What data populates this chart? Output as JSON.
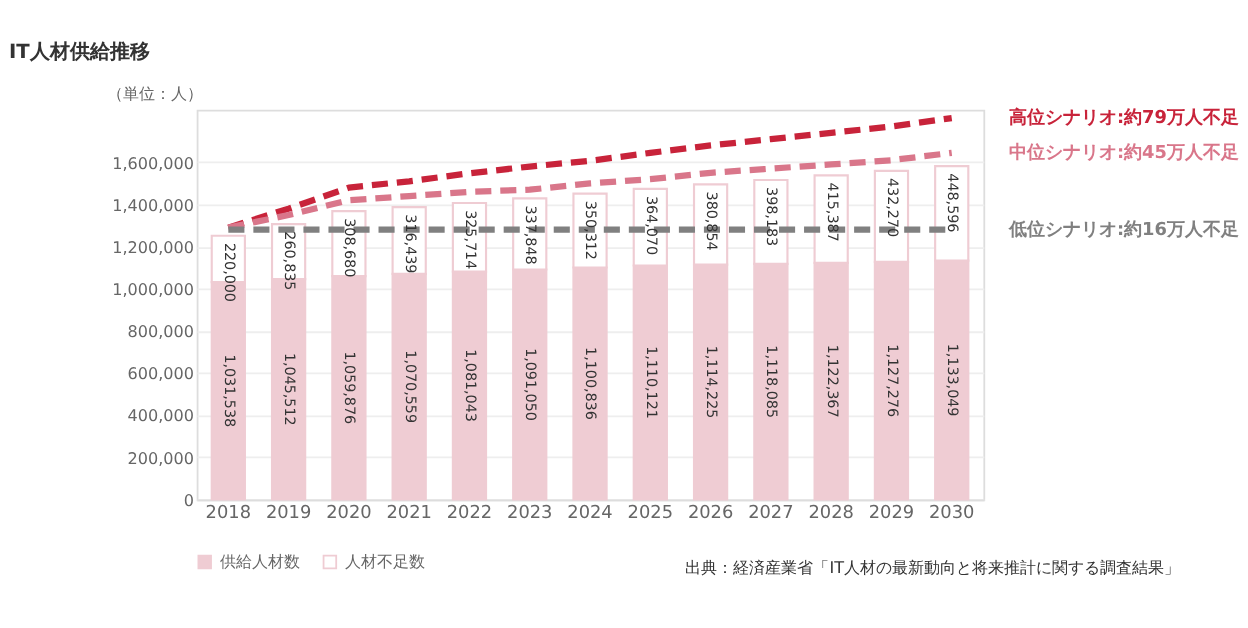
{
  "chart_data": {
    "type": "bar",
    "title": "IT人材供給推移",
    "ylabel": "（単位：人）",
    "categories": [
      "2018",
      "2019",
      "2020",
      "2021",
      "2022",
      "2023",
      "2024",
      "2025",
      "2026",
      "2027",
      "2028",
      "2029",
      "2030"
    ],
    "stacked": true,
    "ylim": [
      0,
      1850000
    ],
    "yticks": [
      {
        "value": 0,
        "label": "0"
      },
      {
        "value": 200000,
        "label": "200,000"
      },
      {
        "value": 400000,
        "label": "400,000"
      },
      {
        "value": 600000,
        "label": "600,000"
      },
      {
        "value": 800000,
        "label": "800,000"
      },
      {
        "value": 1000000,
        "label": "1,000,000"
      },
      {
        "value": 1200000,
        "label": "1,200,000"
      },
      {
        "value": 1400000,
        "label": "1,400,000"
      },
      {
        "value": 1600000,
        "label": "1,600,000"
      }
    ],
    "grid": "y",
    "legend": "bottom",
    "series": [
      {
        "name": "供給人材数",
        "color": "#efccd3",
        "values": [
          1031538,
          1045512,
          1059876,
          1070559,
          1081043,
          1091050,
          1100836,
          1110121,
          1114225,
          1118085,
          1122367,
          1127276,
          1133049
        ],
        "value_labels": [
          "1,031,538",
          "1,045,512",
          "1,059,876",
          "1,070,559",
          "1,081,043",
          "1,091,050",
          "1,100,836",
          "1,110,121",
          "1,114,225",
          "1,118,085",
          "1,122,367",
          "1,127,276",
          "1,133,049"
        ]
      },
      {
        "name": "人材不足数",
        "color": "#ffffff",
        "values": [
          220000,
          260835,
          308680,
          316439,
          325714,
          337848,
          350312,
          364070,
          380854,
          398183,
          415387,
          432270,
          448596
        ],
        "value_labels": [
          "220,000",
          "260,835",
          "308,680",
          "316,439",
          "325,714",
          "337,848",
          "350,312",
          "364,070",
          "380,854",
          "398,183",
          "415,387",
          "432,270",
          "448,596"
        ]
      },
      {
        "name": "高位シナリオ:約79万人不足",
        "type": "line",
        "line_style": "dashed",
        "marker": "none",
        "color": "#c8233a",
        "values": [
          1290000,
          1380000,
          1480000,
          1510000,
          1548000,
          1580000,
          1607000,
          1645000,
          1680000,
          1710000,
          1740000,
          1770000,
          1810000
        ]
      },
      {
        "name": "中位シナリオ:約45万人不足",
        "type": "line",
        "line_style": "dashed",
        "marker": "none",
        "color": "#d9768a",
        "values": [
          1290000,
          1350000,
          1420000,
          1440000,
          1460000,
          1470000,
          1500000,
          1520000,
          1550000,
          1570000,
          1590000,
          1610000,
          1645000
        ]
      },
      {
        "name": "低位シナリオ:約16万人不足",
        "type": "line",
        "line_style": "dashed",
        "marker": "none",
        "color": "#808080",
        "values": [
          1280000,
          1280000,
          1280000,
          1280000,
          1280000,
          1280000,
          1280000,
          1280000,
          1280000,
          1280000,
          1280000,
          1280000,
          1280000
        ]
      }
    ],
    "annotations": [
      "出典：経済産業省「IT人材の最新動向と将来推計に関する調査結果」"
    ]
  }
}
